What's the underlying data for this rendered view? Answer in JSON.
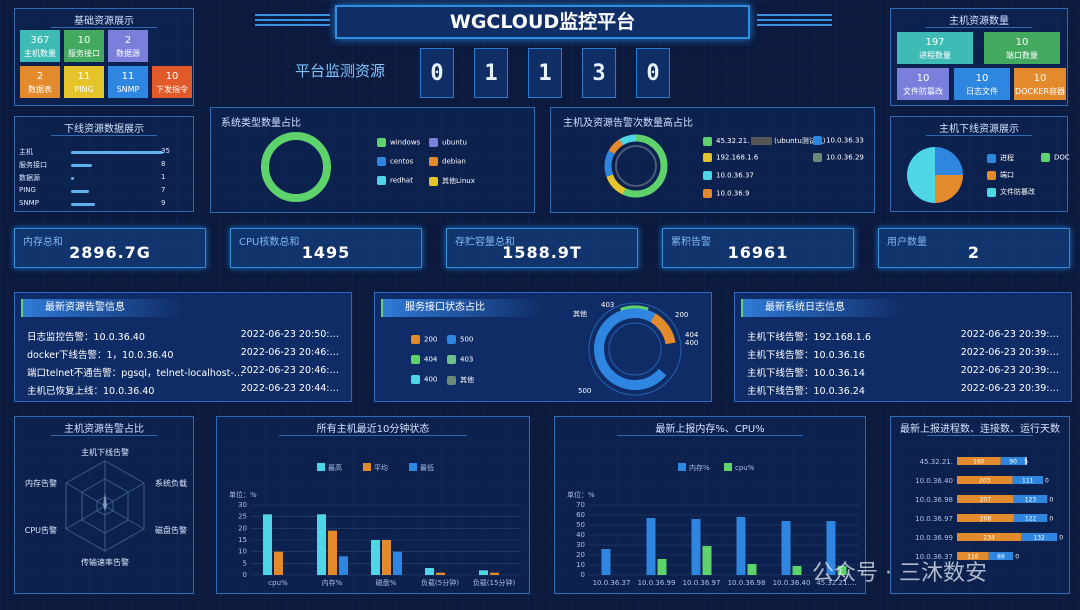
{
  "header": {
    "title": "WGCLOUD监控平台",
    "subtitle": "平台监测资源",
    "digits": [
      "0",
      "1",
      "1",
      "3",
      "0"
    ]
  },
  "base": {
    "title": "基础资源展示",
    "tiles": [
      {
        "num": "367",
        "label": "主机数量",
        "color": "#3fbbb5"
      },
      {
        "num": "10",
        "label": "服务接口",
        "color": "#43a95f"
      },
      {
        "num": "2",
        "label": "数据源",
        "color": "#7a7fdc"
      },
      {
        "num": "2",
        "label": "数据表",
        "color": "#e28a2c"
      },
      {
        "num": "11",
        "label": "PING",
        "color": "#e5c32a"
      },
      {
        "num": "11",
        "label": "SNMP",
        "color": "#2f86e0"
      },
      {
        "num": "10",
        "label": "下发指令",
        "color": "#e25a2a"
      }
    ]
  },
  "downlist": {
    "title": "下线资源数据展示",
    "items": [
      {
        "label": "主机",
        "value": 35
      },
      {
        "label": "服务接口",
        "value": 8
      },
      {
        "label": "数据源",
        "value": 1
      },
      {
        "label": "PING",
        "value": 7
      },
      {
        "label": "SNMP",
        "value": 9
      }
    ]
  },
  "ostype": {
    "title": "系统类型数量占比",
    "legend": [
      "windows",
      "ubuntu",
      "centos",
      "debian",
      "redhat",
      "其他Linux"
    ],
    "colors": [
      "#5fd36b",
      "#7a7fdc",
      "#2f86e0",
      "#e28a2c",
      "#4fd6e6",
      "#e5c32a"
    ]
  },
  "hostalarm": {
    "title": "主机及资源告警次数量高占比",
    "legend": [
      "45.32.21.",
      "(ubuntu测试机)",
      "10.0.36.33",
      "192.168.1.6",
      "10.0.36.29",
      "10.0.36.37",
      "10.0.36.9"
    ]
  },
  "hostres": {
    "title": "主机资源数量",
    "tiles": [
      {
        "num": "197",
        "label": "进程数量",
        "color": "#3fbbb5"
      },
      {
        "num": "10",
        "label": "端口数量",
        "color": "#43a95f"
      },
      {
        "num": "10",
        "label": "文件防篡改",
        "color": "#7a7fdc"
      },
      {
        "num": "10",
        "label": "日志文件",
        "color": "#2f86e0"
      },
      {
        "num": "10",
        "label": "DOCKER容器",
        "color": "#e28a2c"
      }
    ]
  },
  "hostdown": {
    "title": "主机下线资源展示",
    "legend": [
      "进程",
      "DOC",
      "端口",
      "文件防篡改"
    ]
  },
  "stats": [
    {
      "label": "内存总和",
      "value": "2896.7G"
    },
    {
      "label": "CPU核数总和",
      "value": "1495"
    },
    {
      "label": "存贮容量总和",
      "value": "1588.9T"
    },
    {
      "label": "累积告警",
      "value": "16961"
    },
    {
      "label": "用户数量",
      "value": "2"
    }
  ],
  "alarms": {
    "title": "最新资源告警信息",
    "rows": [
      {
        "text": "日志监控告警：10.0.36.40",
        "time": "2022-06-23 20:50:…"
      },
      {
        "text": "docker下线告警：1，10.0.36.40",
        "time": "2022-06-23 20:46:…"
      },
      {
        "text": "端口telnet不通告警：pgsql，telnet-localhost-…",
        "time": "2022-06-23 20:46:…"
      },
      {
        "text": "主机已恢复上线：10.0.36.40",
        "time": "2022-06-23 20:44:…"
      }
    ]
  },
  "svc": {
    "title": "服务接口状态占比",
    "legend": [
      "200",
      "500",
      "404",
      "403",
      "400",
      "其他"
    ],
    "ring_labels": [
      "403",
      "200",
      "404",
      "400",
      "500",
      "其他"
    ]
  },
  "logs": {
    "title": "最新系统日志信息",
    "rows": [
      {
        "text": "主机下线告警：192.168.1.6",
        "time": "2022-06-23 20:39:…"
      },
      {
        "text": "主机下线告警：10.0.36.16",
        "time": "2022-06-23 20:39:…"
      },
      {
        "text": "主机下线告警：10.0.36.14",
        "time": "2022-06-23 20:39:…"
      },
      {
        "text": "主机下线告警：10.0.36.24",
        "time": "2022-06-23 20:39:…"
      }
    ]
  },
  "radar": {
    "title": "主机资源告警占比",
    "labels": [
      "主机下线告警",
      "系统负载",
      "磁盘告警",
      "传输速率告警",
      "CPU告警",
      "内存告警"
    ]
  },
  "chart_data": [
    {
      "type": "bar",
      "title": "所有主机最近10分钟状态",
      "ylabel": "单位：%",
      "categories": [
        "cpu%",
        "内存%",
        "磁盘%",
        "负载(5分钟)",
        "负载(15分钟)"
      ],
      "ylim": [
        0,
        30
      ],
      "yticks": [
        0,
        5,
        10,
        15,
        20,
        25,
        30
      ],
      "series": [
        {
          "name": "最高",
          "color": "#4fd6e6",
          "values": [
            26,
            26,
            15,
            3,
            2
          ]
        },
        {
          "name": "平均",
          "color": "#e28a2c",
          "values": [
            10,
            19,
            15,
            1,
            1
          ]
        },
        {
          "name": "最低",
          "color": "#2f86e0",
          "values": [
            0,
            8,
            10,
            0,
            0
          ]
        }
      ]
    },
    {
      "type": "bar",
      "title": "最新上报内存%、CPU%",
      "ylabel": "单位：%",
      "categories": [
        "10.0.36.37",
        "10.0.36.99",
        "10.0.36.97",
        "10.0.36.98",
        "10.0.36.40",
        "45.32.21.…"
      ],
      "ylim": [
        0,
        70
      ],
      "yticks": [
        0,
        10,
        20,
        30,
        40,
        50,
        60,
        70
      ],
      "series": [
        {
          "name": "内存%",
          "color": "#2f86e0",
          "values": [
            26,
            57,
            56,
            58,
            54,
            54
          ]
        },
        {
          "name": "cpu%",
          "color": "#5fd36b",
          "values": [
            0,
            16,
            29,
            11,
            9,
            9
          ]
        }
      ]
    },
    {
      "type": "bar",
      "title": "最新上报进程数、连接数、运行天数",
      "categories": [
        "45.32.21.",
        "10.0.36.40",
        "10.0.36.98",
        "10.0.36.97",
        "10.0.36.99",
        "10.0.36.37"
      ],
      "series": [
        {
          "name": "进程数",
          "color": "#e28a2c",
          "values": [
            160,
            203,
            207,
            208,
            234,
            116
          ]
        },
        {
          "name": "连接数",
          "color": "#2f86e0",
          "values": [
            90,
            111,
            123,
            122,
            132,
            89
          ]
        },
        {
          "name": "运行天数",
          "color": "#dfe9ff",
          "values": [
            5,
            0,
            0,
            0,
            0,
            0
          ]
        }
      ]
    }
  ],
  "watermark": "公众号 · 三沐数安"
}
